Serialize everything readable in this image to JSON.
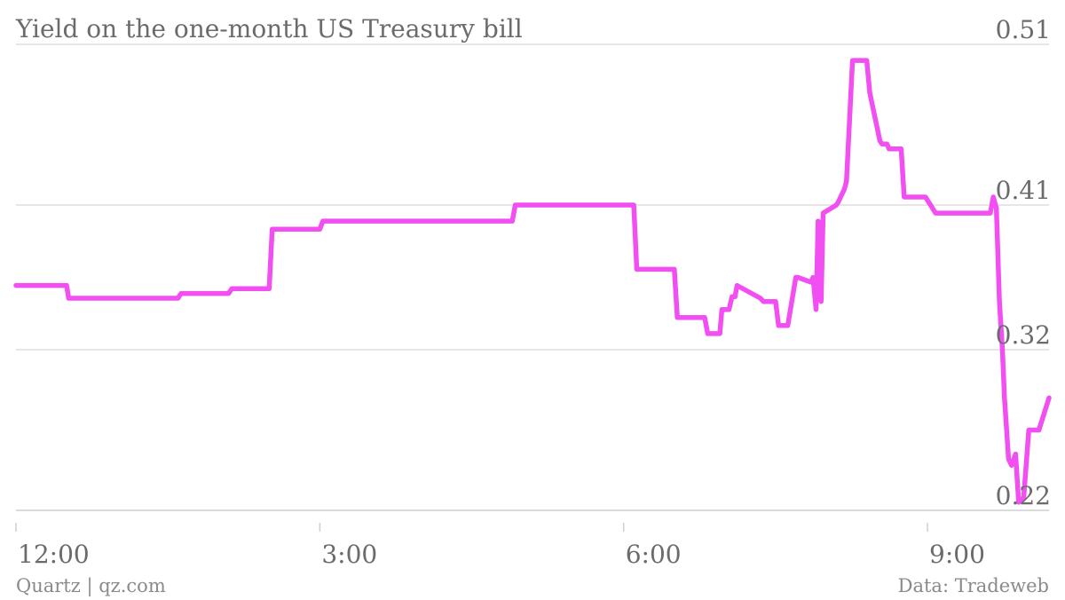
{
  "chart_data": {
    "type": "line",
    "title": "Yield on the one-month US Treasury bill",
    "xlabel": "",
    "ylabel": "",
    "x_tick_labels": [
      "12:00",
      "3:00",
      "6:00",
      "9:00"
    ],
    "y_tick_labels": [
      "0.51",
      "0.41",
      "0.32",
      "0.22"
    ],
    "y_ticks": [
      0.51,
      0.41,
      0.32,
      0.22
    ],
    "ylim": [
      0.22,
      0.51
    ],
    "xlim": [
      0,
      10.2
    ],
    "x_tick_values": [
      0,
      3,
      6,
      9
    ],
    "grid": true,
    "line_color": "#f24ff2",
    "series": [
      {
        "x": [
          0,
          0.5,
          0.52,
          1.6,
          1.63,
          2.1,
          2.13,
          2.5,
          2.53,
          3.0,
          3.03,
          4.9,
          4.93,
          6.1,
          6.13,
          6.5,
          6.53,
          6.6,
          6.62,
          6.8,
          6.83,
          6.95,
          6.97,
          7.04,
          7.07,
          7.1,
          7.12,
          7.35,
          7.38,
          7.5,
          7.53,
          7.6,
          7.62,
          7.7,
          7.72,
          7.85,
          7.87,
          7.9,
          7.92,
          7.95,
          7.97,
          8.1,
          8.12,
          8.18,
          8.2,
          8.26,
          8.3,
          8.4,
          8.43,
          8.53,
          8.55,
          8.6,
          8.62,
          8.74,
          8.77,
          8.95,
          8.98,
          9.08,
          9.12,
          9.18,
          9.22,
          9.28,
          9.33,
          9.3,
          9.4,
          9.45,
          9.5,
          9.55,
          9.58,
          9.62,
          9.65,
          9.68,
          9.71,
          9.74,
          9.76,
          9.8,
          9.83,
          9.87,
          9.9,
          9.95,
          10.0,
          10.05,
          10.1,
          10.2
        ],
        "y": [
          0.36,
          0.36,
          0.352,
          0.352,
          0.355,
          0.355,
          0.358,
          0.358,
          0.395,
          0.395,
          0.4,
          0.4,
          0.41,
          0.41,
          0.37,
          0.37,
          0.34,
          0.34,
          0.34,
          0.34,
          0.33,
          0.33,
          0.345,
          0.345,
          0.353,
          0.353,
          0.36,
          0.352,
          0.35,
          0.35,
          0.335,
          0.335,
          0.335,
          0.365,
          0.365,
          0.362,
          0.365,
          0.345,
          0.4,
          0.35,
          0.405,
          0.41,
          0.412,
          0.42,
          0.425,
          0.5,
          0.5,
          0.5,
          0.48,
          0.45,
          0.448,
          0.448,
          0.445,
          0.445,
          0.415,
          0.415,
          0.415,
          0.405,
          0.405,
          0.405,
          0.405,
          0.405,
          0.405,
          0.405,
          0.405,
          0.405,
          0.405,
          0.405,
          0.405,
          0.405,
          0.415,
          0.408,
          0.35,
          0.32,
          0.29,
          0.252,
          0.248,
          0.255,
          0.225,
          0.228,
          0.27,
          0.27,
          0.27,
          0.29
        ]
      }
    ]
  },
  "footer": {
    "source_left": "Quartz | qz.com",
    "source_right": "Data: Tradeweb"
  }
}
